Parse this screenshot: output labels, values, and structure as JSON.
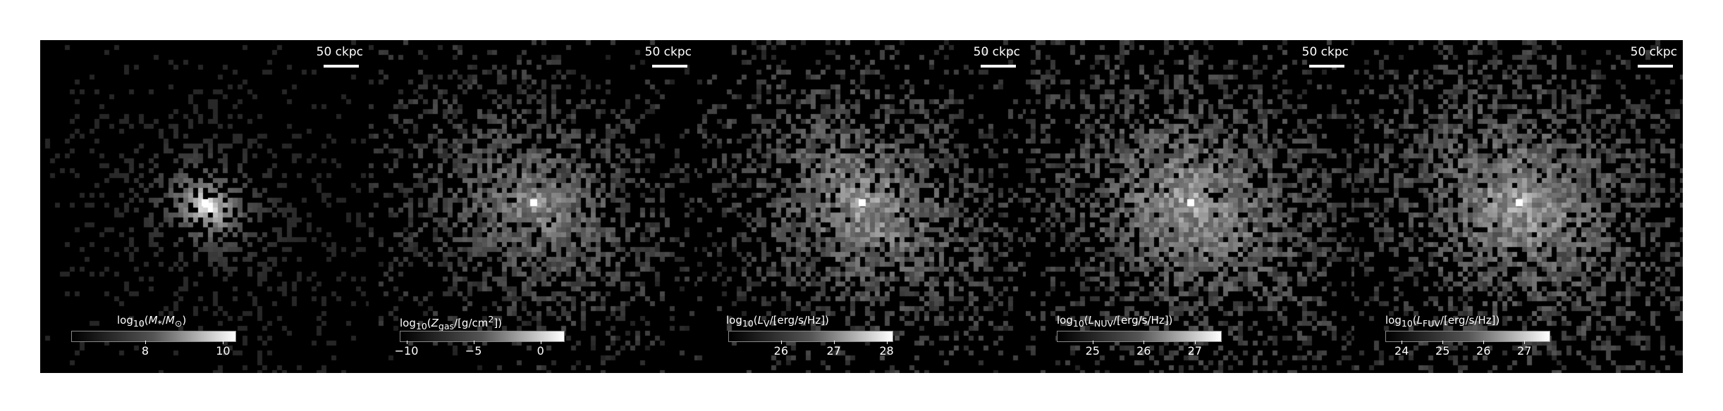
{
  "figure": {
    "scale_bar_label": "50 ckpc",
    "panels": [
      {
        "colorbar_label": "log<sub>10</sub>(<i>M</i><sub>*</sub>/<i>M</i><sub>⊙</sub>)",
        "ticks": [
          {
            "label": "8",
            "value": 8
          },
          {
            "label": "10",
            "value": 10
          }
        ],
        "cbar_range": [
          6.1,
          10.3
        ],
        "spread": 0.22,
        "peak": 1.0
      },
      {
        "colorbar_label": "log<sub>10</sub>(<i>Z</i><sub>gas</sub>/[g/cm<sup>2</sup>])",
        "ticks": [
          {
            "label": "−10",
            "value": -10
          },
          {
            "label": "−5",
            "value": -5
          },
          {
            "label": "0",
            "value": 0
          }
        ],
        "cbar_range": [
          -10.5,
          1.7
        ],
        "spread": 0.55,
        "peak": 0.75
      },
      {
        "colorbar_label": "log<sub>10</sub>(<i>L</i><sub>V</sub>/[erg/s/Hz])",
        "ticks": [
          {
            "label": "26",
            "value": 26
          },
          {
            "label": "27",
            "value": 27
          },
          {
            "label": "28",
            "value": 28
          }
        ],
        "cbar_range": [
          25.0,
          28.1
        ],
        "spread": 0.6,
        "peak": 0.85
      },
      {
        "colorbar_label": "log<sub>10</sub>(<i>L</i><sub>NUV</sub>/[erg/s/Hz])",
        "ticks": [
          {
            "label": "25",
            "value": 25
          },
          {
            "label": "26",
            "value": 26
          },
          {
            "label": "27",
            "value": 27
          }
        ],
        "cbar_range": [
          24.3,
          27.5
        ],
        "spread": 0.7,
        "peak": 0.9
      },
      {
        "colorbar_label": "log<sub>10</sub>(<i>L</i><sub>FUV</sub>/[erg/s/Hz])",
        "ticks": [
          {
            "label": "24",
            "value": 24
          },
          {
            "label": "25",
            "value": 25
          },
          {
            "label": "26",
            "value": 26
          },
          {
            "label": "27",
            "value": 27
          }
        ],
        "cbar_range": [
          23.6,
          27.6
        ],
        "spread": 0.7,
        "peak": 0.9
      }
    ]
  }
}
